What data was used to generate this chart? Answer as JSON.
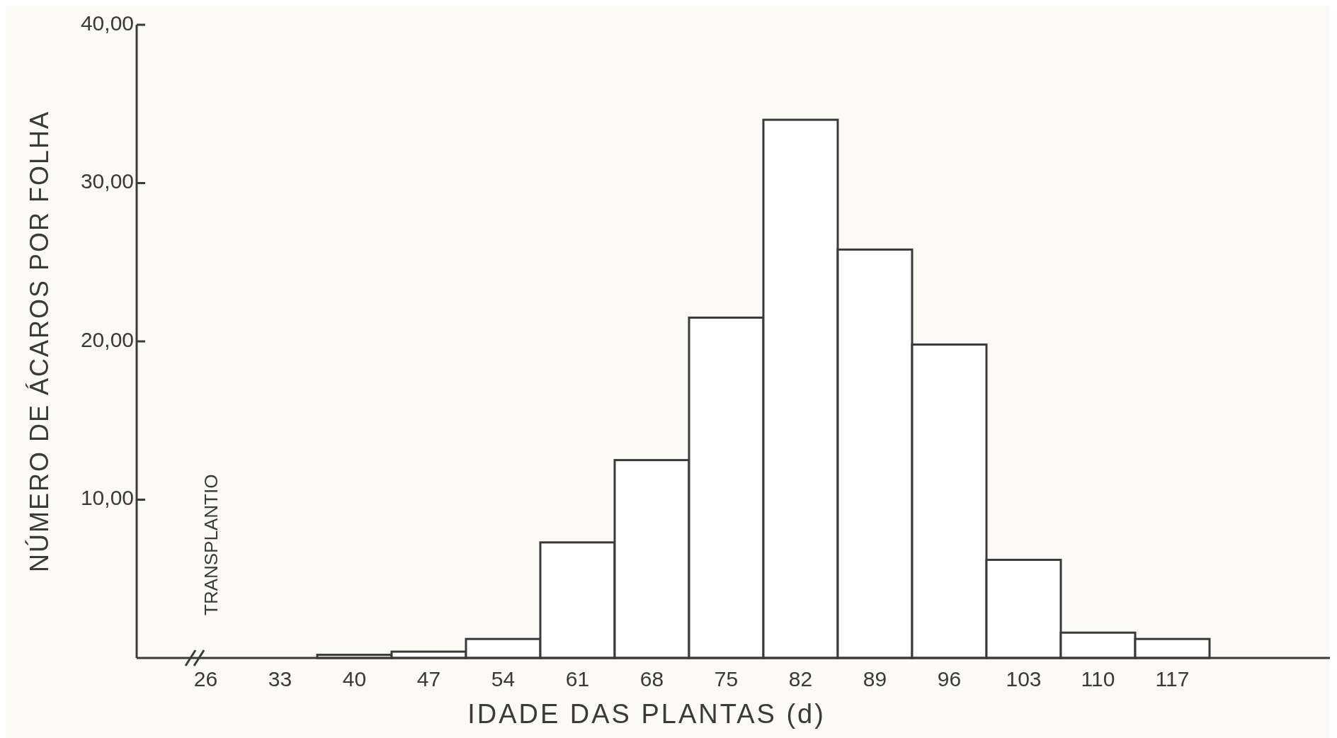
{
  "chart_data": {
    "type": "bar",
    "xlabel": "IDADE DAS PLANTAS (d)",
    "ylabel": "NÚMERO DE ÁCAROS POR FOLHA",
    "categories": [
      "26",
      "33",
      "40",
      "47",
      "54",
      "61",
      "68",
      "75",
      "82",
      "89",
      "96",
      "103",
      "110",
      "117"
    ],
    "values": [
      0,
      0,
      0.2,
      0.4,
      1.2,
      7.3,
      12.5,
      21.5,
      34,
      25.8,
      19.8,
      6.2,
      1.6,
      1.2
    ],
    "color": "#ffffff",
    "ylim": [
      0,
      40
    ],
    "yticks": [
      {
        "value": 10,
        "label": "10,00"
      },
      {
        "value": 20,
        "label": "20,00"
      },
      {
        "value": 30,
        "label": "30,00"
      },
      {
        "value": 40,
        "label": "40,00"
      }
    ],
    "annotations": [
      "TRANSPLANTIO"
    ]
  }
}
